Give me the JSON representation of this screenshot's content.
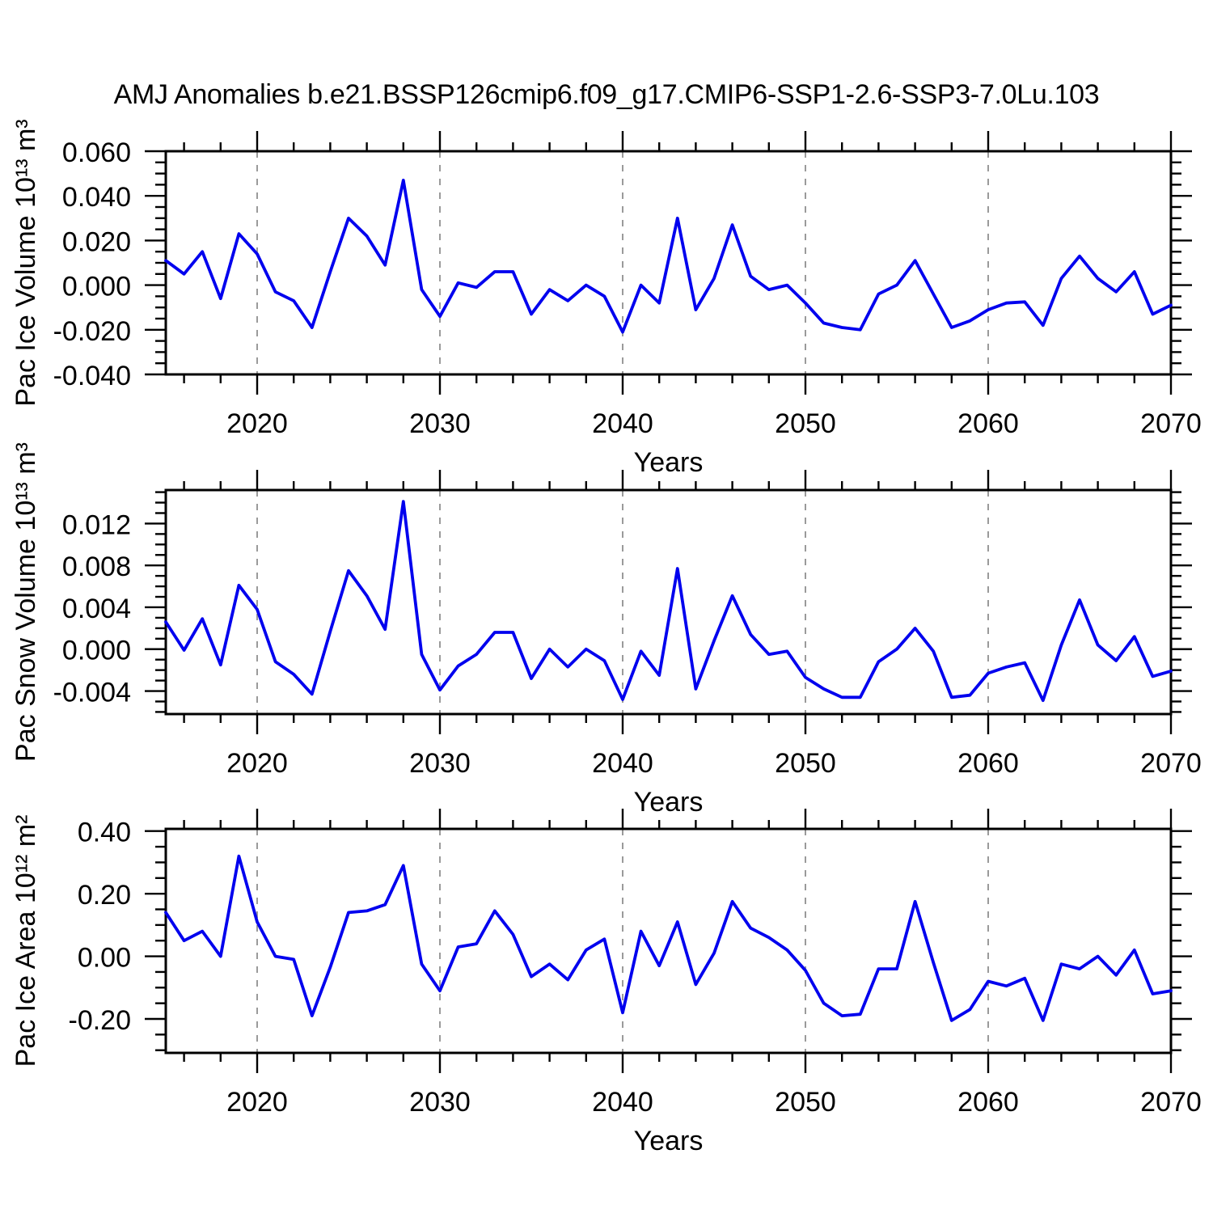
{
  "title": "AMJ Anomalies b.e21.BSSP126cmip6.f09_g17.CMIP6-SSP1-2.6-SSP3-7.0Lu.103",
  "colors": {
    "line": "#0000ee",
    "grid": "#9a9a9a",
    "axis": "#000000",
    "text": "#000000",
    "background": "#ffffff"
  },
  "x_axis": {
    "label": "Years",
    "range": [
      2015,
      2070
    ],
    "ticks_major": [
      2020,
      2030,
      2040,
      2050,
      2060,
      2070
    ],
    "ticks_minor": [
      2016,
      2018,
      2022,
      2024,
      2026,
      2028,
      2032,
      2034,
      2036,
      2038,
      2042,
      2044,
      2046,
      2048,
      2052,
      2054,
      2056,
      2058,
      2062,
      2064,
      2066,
      2068
    ],
    "gridlines": [
      2020,
      2030,
      2040,
      2050,
      2060
    ]
  },
  "chart_data": [
    {
      "type": "line",
      "name": "pac-ice-volume",
      "ylabel": "Pac Ice Volume 10¹³ m³",
      "xlabel": "Years",
      "legend": "none",
      "grid": "vertical-dashed-decades",
      "ylim": [
        -0.04,
        0.06
      ],
      "yticks_major": [
        0.06,
        0.04,
        0.02,
        0.0,
        -0.02,
        -0.04
      ],
      "ytick_labels": [
        "0.060",
        "0.040",
        "0.020",
        "0.000",
        "-0.020",
        "-0.040"
      ],
      "yticks_minor": [
        0.055,
        0.05,
        0.045,
        0.035,
        0.03,
        0.025,
        0.015,
        0.01,
        0.005,
        -0.005,
        -0.01,
        -0.015,
        -0.025,
        -0.03,
        -0.035
      ],
      "x": [
        2015,
        2016,
        2017,
        2018,
        2019,
        2020,
        2021,
        2022,
        2023,
        2024,
        2025,
        2026,
        2027,
        2028,
        2029,
        2030,
        2031,
        2032,
        2033,
        2034,
        2035,
        2036,
        2037,
        2038,
        2039,
        2040,
        2041,
        2042,
        2043,
        2044,
        2045,
        2046,
        2047,
        2048,
        2049,
        2050,
        2051,
        2052,
        2053,
        2054,
        2055,
        2056,
        2057,
        2058,
        2059,
        2060,
        2061,
        2062,
        2063,
        2064,
        2065,
        2066,
        2067,
        2068,
        2069,
        2070
      ],
      "values": [
        0.011,
        0.005,
        0.015,
        -0.006,
        0.023,
        0.014,
        -0.003,
        -0.007,
        -0.019,
        0.006,
        0.03,
        0.022,
        0.009,
        0.047,
        -0.002,
        -0.014,
        0.001,
        -0.001,
        0.006,
        0.006,
        -0.013,
        -0.002,
        -0.007,
        0.0,
        -0.005,
        -0.021,
        0.0,
        -0.008,
        0.03,
        -0.011,
        0.003,
        0.027,
        0.004,
        -0.002,
        0.0,
        -0.008,
        -0.017,
        -0.019,
        -0.02,
        -0.004,
        0.0,
        0.011,
        -0.004,
        -0.019,
        -0.016,
        -0.011,
        -0.008,
        -0.0075,
        -0.018,
        0.003,
        0.013,
        0.003,
        -0.003,
        0.006,
        -0.013,
        -0.009
      ]
    },
    {
      "type": "line",
      "name": "pac-snow-volume",
      "ylabel": "Pac Snow Volume 10¹³ m³",
      "xlabel": "Years",
      "legend": "none",
      "grid": "vertical-dashed-decades",
      "ylim": [
        -0.0062,
        0.0152
      ],
      "yticks_major": [
        0.012,
        0.008,
        0.004,
        0.0,
        -0.004
      ],
      "ytick_labels": [
        "0.012",
        "0.008",
        "0.004",
        "0.000",
        "-0.004"
      ],
      "yticks_minor": [
        0.015,
        0.014,
        0.013,
        0.011,
        0.01,
        0.009,
        0.007,
        0.006,
        0.005,
        0.003,
        0.002,
        0.001,
        -0.001,
        -0.002,
        -0.003,
        -0.005,
        -0.006
      ],
      "x": [
        2015,
        2016,
        2017,
        2018,
        2019,
        2020,
        2021,
        2022,
        2023,
        2024,
        2025,
        2026,
        2027,
        2028,
        2029,
        2030,
        2031,
        2032,
        2033,
        2034,
        2035,
        2036,
        2037,
        2038,
        2039,
        2040,
        2041,
        2042,
        2043,
        2044,
        2045,
        2046,
        2047,
        2048,
        2049,
        2050,
        2051,
        2052,
        2053,
        2054,
        2055,
        2056,
        2057,
        2058,
        2059,
        2060,
        2061,
        2062,
        2063,
        2064,
        2065,
        2066,
        2067,
        2068,
        2069,
        2070
      ],
      "values": [
        0.0026,
        -0.0001,
        0.0029,
        -0.0015,
        0.0061,
        0.0038,
        -0.0012,
        -0.0024,
        -0.0043,
        0.0017,
        0.0075,
        0.0051,
        0.0019,
        0.0141,
        -0.0005,
        -0.0039,
        -0.0016,
        -0.0005,
        0.0016,
        0.0016,
        -0.0028,
        0.0,
        -0.0017,
        0.0,
        -0.0011,
        -0.0048,
        -0.0002,
        -0.0025,
        0.0077,
        -0.0038,
        0.0008,
        0.0051,
        0.0014,
        -0.0005,
        -0.0002,
        -0.0027,
        -0.0038,
        -0.0046,
        -0.0046,
        -0.0012,
        0.0,
        0.002,
        -0.0002,
        -0.0046,
        -0.0044,
        -0.0023,
        -0.0017,
        -0.0013,
        -0.0049,
        0.0004,
        0.0047,
        0.0004,
        -0.0011,
        0.0012,
        -0.0026,
        -0.0021
      ]
    },
    {
      "type": "line",
      "name": "pac-ice-area",
      "ylabel": "Pac Ice Area 10¹² m²",
      "xlabel": "Years",
      "legend": "none",
      "grid": "vertical-dashed-decades",
      "ylim": [
        -0.3085,
        0.407
      ],
      "yticks_major": [
        0.4,
        0.2,
        0.0,
        -0.2
      ],
      "ytick_labels": [
        "0.40",
        "0.20",
        "0.00",
        "-0.20"
      ],
      "yticks_minor": [
        0.35,
        0.3,
        0.25,
        0.15,
        0.1,
        0.05,
        -0.05,
        -0.1,
        -0.15,
        -0.25,
        -0.3
      ],
      "x": [
        2015,
        2016,
        2017,
        2018,
        2019,
        2020,
        2021,
        2022,
        2023,
        2024,
        2025,
        2026,
        2027,
        2028,
        2029,
        2030,
        2031,
        2032,
        2033,
        2034,
        2035,
        2036,
        2037,
        2038,
        2039,
        2040,
        2041,
        2042,
        2043,
        2044,
        2045,
        2046,
        2047,
        2048,
        2049,
        2050,
        2051,
        2052,
        2053,
        2054,
        2055,
        2056,
        2057,
        2058,
        2059,
        2060,
        2061,
        2062,
        2063,
        2064,
        2065,
        2066,
        2067,
        2068,
        2069,
        2070
      ],
      "values": [
        0.14,
        0.05,
        0.08,
        0.0,
        0.32,
        0.11,
        0.0,
        -0.01,
        -0.19,
        -0.035,
        0.14,
        0.145,
        0.165,
        0.29,
        -0.025,
        -0.11,
        0.03,
        0.04,
        0.145,
        0.07,
        -0.065,
        -0.025,
        -0.075,
        0.02,
        0.055,
        -0.18,
        0.08,
        -0.03,
        0.11,
        -0.09,
        0.01,
        0.175,
        0.09,
        0.06,
        0.02,
        -0.045,
        -0.15,
        -0.19,
        -0.185,
        -0.04,
        -0.04,
        0.175,
        -0.02,
        -0.205,
        -0.17,
        -0.08,
        -0.095,
        -0.07,
        -0.205,
        -0.025,
        -0.04,
        0.0,
        -0.06,
        0.02,
        -0.12,
        -0.11
      ]
    }
  ]
}
